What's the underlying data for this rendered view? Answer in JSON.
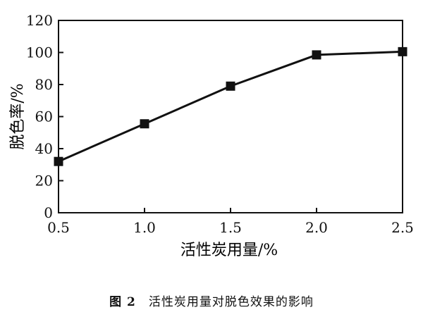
{
  "chart_data": {
    "type": "line",
    "title": "",
    "xlabel": "活性炭用量/%",
    "ylabel": "脱色率/%",
    "x": [
      0.5,
      1.0,
      1.5,
      2.0,
      2.5
    ],
    "y": [
      32,
      55.5,
      79,
      98.5,
      100.5
    ],
    "xlim": [
      0.5,
      2.5
    ],
    "ylim": [
      0,
      120
    ],
    "xticks": [
      "0.5",
      "1.0",
      "1.5",
      "2.0",
      "2.5"
    ],
    "yticks": [
      "0",
      "20",
      "40",
      "60",
      "80",
      "100",
      "120"
    ],
    "marker": "square",
    "grid": false,
    "line_color": "#111111"
  },
  "caption": {
    "figure_number": "图 2",
    "text": "活性炭用量对脱色效果的影响"
  }
}
